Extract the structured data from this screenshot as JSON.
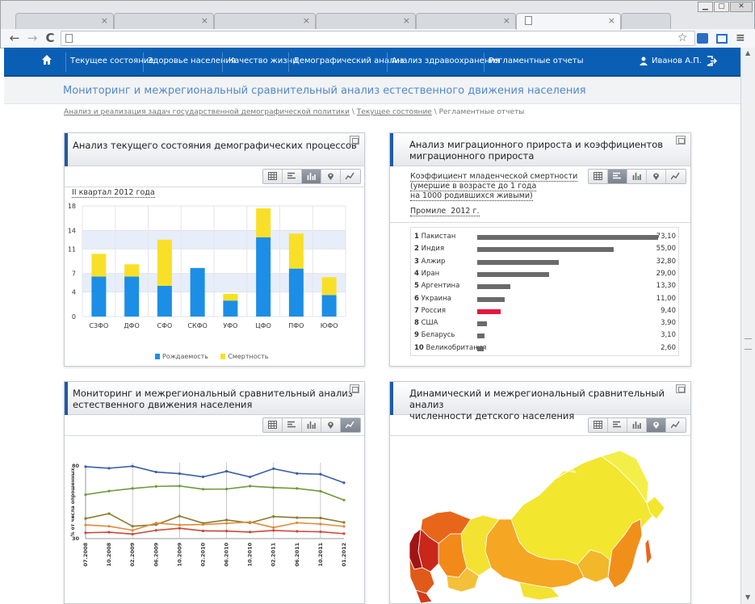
{
  "browser": {
    "tabs": [
      {
        "close": "×"
      },
      {
        "close": "×"
      },
      {
        "close": "×"
      },
      {
        "close": "×"
      },
      {
        "close": "×"
      },
      {
        "close": "×",
        "active": true
      }
    ],
    "window_buttons": [
      "▁",
      "▢",
      "✕"
    ],
    "nav_back": "←",
    "nav_forward": "→",
    "nav_reload": "C",
    "address": "",
    "star": "☆",
    "menu": "≡"
  },
  "nav": {
    "items": [
      "Текущее состояние",
      "Здоровье населения",
      "Качество жизни",
      "Демографический анализ",
      "Анализ здравоохранения",
      "Регламентные отчеты"
    ],
    "user": "Иванов А.П."
  },
  "page": {
    "title": "Мониторинг и межрегиональный сравнительный анализ естественного движения населения",
    "breadcrumbs": [
      "Анализ и реализация задач государственной демографической политики",
      "Текущее состояние",
      "Регламентные отчеты"
    ],
    "crumb_sep": " \\ "
  },
  "panel1": {
    "title": "Анализ текущего состояния демографических процессов",
    "period": "II квартал 2012 года"
  },
  "panel2": {
    "title_line1": "Анализ миграционного прироста и коэффициентов",
    "title_line2": "миграционного прироста",
    "sub1": "Коэффициент младенческой смертности",
    "sub2": "(умершие в возрасте до 1 года",
    "sub3": "на 1000 родившихся живыми)",
    "sub4": "Промиле  2012 г."
  },
  "panel3": {
    "title_line1": "Мониторинг и межрегиональный сравнительный анализ",
    "title_line2": "естественного движения населения"
  },
  "panel4": {
    "title_line1": "Динамический и межрегиональный сравнительный анализ",
    "title_line2": "численности детского населения"
  },
  "chart_data": [
    {
      "type": "bar",
      "stacked": true,
      "categories": [
        "СЗФО",
        "ДФО",
        "СФО",
        "СКФО",
        "УФО",
        "ЦФО",
        "ПФО",
        "ЮФО"
      ],
      "series": [
        {
          "name": "Рождаемость",
          "values": [
            6.5,
            6.5,
            5,
            7.9,
            2.6,
            12.9,
            7.8,
            3.5
          ]
        },
        {
          "name": "Смертность",
          "values": [
            3.7,
            2.0,
            7.5,
            0,
            1.1,
            4.7,
            5.7,
            2.9
          ]
        }
      ],
      "yticks": [
        0,
        4,
        7,
        11,
        14,
        18
      ],
      "ylim": [
        0,
        18
      ],
      "colors": [
        "#1c8ee6",
        "#f8e028"
      ],
      "legend": "bottom"
    },
    {
      "type": "bar",
      "orientation": "horizontal",
      "categories": [
        "Пакистан",
        "Индия",
        "Алжир",
        "Иран",
        "Аргентина",
        "Украина",
        "Россия",
        "США",
        "Беларусь",
        "Великобритания"
      ],
      "ranks": [
        "1",
        "2",
        "3",
        "4",
        "5",
        "6",
        "7",
        "8",
        "9",
        "10"
      ],
      "values": [
        73.1,
        55.0,
        32.8,
        29.0,
        13.3,
        11.0,
        9.4,
        3.9,
        3.1,
        2.6
      ],
      "value_labels": [
        "73,10",
        "55,00",
        "32,80",
        "29,00",
        "13,30",
        "11,00",
        "9,40",
        "3,90",
        "3,10",
        "2,60"
      ],
      "highlight": "Россия",
      "colors": {
        "bar": "#6a6a6a",
        "highlight": "#e8163c"
      }
    },
    {
      "type": "line",
      "x": [
        "07.2008",
        "10.2008",
        "02.2009",
        "06.2009",
        "10.2009",
        "02.2010",
        "06.2010",
        "10.2010",
        "02.2011",
        "06.2011",
        "10.2011",
        "01.2012"
      ],
      "ylabel": "% от числа опрошенных",
      "yticks": [
        "80",
        "30"
      ],
      "series": [
        {
          "color": "#3a5ea8",
          "values": [
            79.5,
            78.4,
            79.8,
            75.8,
            74.7,
            72.5,
            76.3,
            72.4,
            78.1,
            74.8,
            74.3,
            68.4
          ]
        },
        {
          "color": "#6e9a3a",
          "values": [
            60.2,
            62.7,
            64.5,
            65.9,
            66.2,
            64.0,
            64.1,
            66.1,
            65.1,
            64.5,
            62.6,
            56.5
          ]
        },
        {
          "color": "#8a7a2a",
          "values": [
            43.8,
            47.2,
            38.5,
            39.6,
            45.5,
            40.6,
            42.8,
            40.8,
            45.2,
            44.4,
            44.2,
            41.1
          ]
        },
        {
          "color": "#e08a3a",
          "values": [
            39.4,
            38.5,
            35.7,
            40.7,
            39.4,
            39.7,
            40.5,
            41.4,
            37.6,
            40.9,
            40.0,
            38.4
          ]
        },
        {
          "color": "#c84a3a",
          "values": [
            34.0,
            34.4,
            33.1,
            35.7,
            37.1,
            35.3,
            35.2,
            34.5,
            35.6,
            35.0,
            34.7,
            33.4
          ]
        }
      ]
    }
  ]
}
